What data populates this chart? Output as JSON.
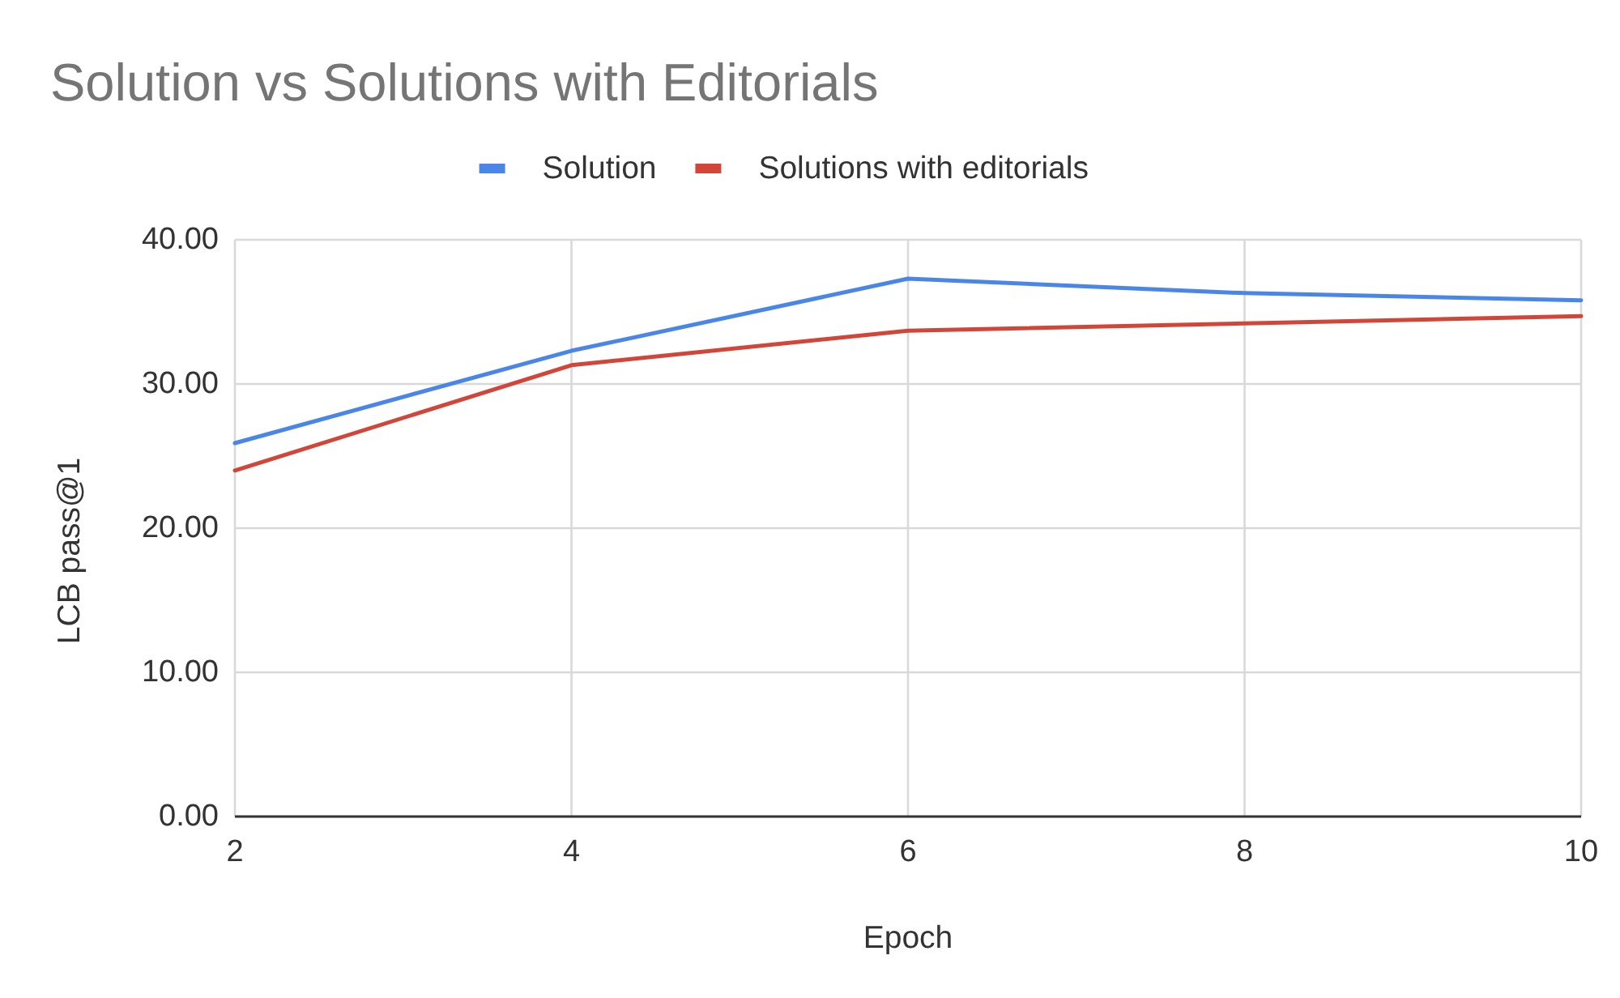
{
  "chart_data": {
    "type": "line",
    "title": "Solution vs Solutions with Editorials",
    "xlabel": "Epoch",
    "ylabel": "LCB pass@1",
    "x": [
      2,
      4,
      6,
      8,
      10
    ],
    "series": [
      {
        "name": "Solution",
        "color": "#4a86e8",
        "values": [
          25.9,
          32.3,
          37.3,
          36.3,
          35.8
        ]
      },
      {
        "name": "Solutions with editorials",
        "color": "#d2463a",
        "values": [
          24.0,
          31.3,
          33.7,
          34.2,
          34.7
        ]
      }
    ],
    "xlim": [
      2,
      10
    ],
    "xticks": [
      2,
      4,
      6,
      8,
      10
    ],
    "ylim": [
      0,
      40
    ],
    "yticks": [
      {
        "value": 0,
        "label": "0.00"
      },
      {
        "value": 10,
        "label": "10.00"
      },
      {
        "value": 20,
        "label": "20.00"
      },
      {
        "value": 30,
        "label": "30.00"
      },
      {
        "value": 40,
        "label": "40.00"
      }
    ],
    "grid": true,
    "legend": "top",
    "marker": "none",
    "line_style": "solid"
  }
}
